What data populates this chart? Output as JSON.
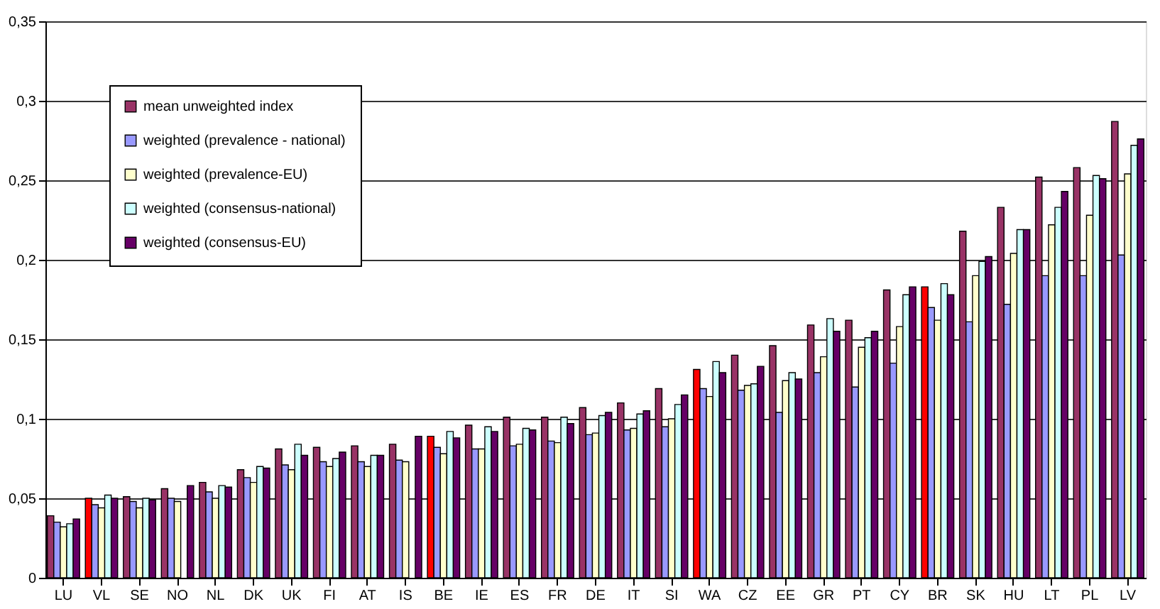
{
  "chart_data": {
    "type": "bar",
    "categories": [
      "LU",
      "VL",
      "SE",
      "NO",
      "NL",
      "DK",
      "UK",
      "FI",
      "AT",
      "IS",
      "BE",
      "IE",
      "ES",
      "FR",
      "DE",
      "IT",
      "SI",
      "WA",
      "CZ",
      "EE",
      "GR",
      "PT",
      "CY",
      "BR",
      "SK",
      "HU",
      "LT",
      "PL",
      "LV"
    ],
    "series": [
      {
        "name": "mean unweighted index",
        "color": "#993366",
        "colors": [
          "#993366",
          "#ff0000",
          "#993366",
          "#993366",
          "#993366",
          "#993366",
          "#993366",
          "#993366",
          "#993366",
          "#993366",
          "#ff0000",
          "#993366",
          "#993366",
          "#993366",
          "#993366",
          "#993366",
          "#993366",
          "#ff0000",
          "#993366",
          "#993366",
          "#993366",
          "#993366",
          "#993366",
          "#ff0000",
          "#993366",
          "#993366",
          "#993366",
          "#993366",
          "#993366"
        ],
        "values": [
          0.039,
          0.05,
          0.051,
          0.056,
          0.06,
          0.068,
          0.081,
          0.082,
          0.083,
          0.084,
          0.089,
          0.096,
          0.101,
          0.101,
          0.107,
          0.11,
          0.119,
          0.131,
          0.14,
          0.146,
          0.159,
          0.162,
          0.181,
          0.183,
          0.218,
          0.233,
          0.252,
          0.258,
          0.287
        ]
      },
      {
        "name": "weighted (prevalence - national)",
        "color": "#9999ff",
        "values": [
          0.035,
          0.046,
          0.048,
          0.05,
          0.054,
          0.063,
          0.071,
          0.073,
          0.073,
          0.074,
          0.082,
          0.081,
          0.083,
          0.086,
          0.09,
          0.093,
          0.095,
          0.119,
          0.118,
          0.104,
          0.129,
          0.12,
          0.135,
          0.17,
          0.161,
          0.172,
          0.19,
          0.19,
          0.203
        ]
      },
      {
        "name": "weighted (prevalence-EU)",
        "color": "#ffffcc",
        "values": [
          0.032,
          0.044,
          0.044,
          0.048,
          0.05,
          0.06,
          0.068,
          0.07,
          0.07,
          0.073,
          0.078,
          0.081,
          0.084,
          0.085,
          0.091,
          0.094,
          0.1,
          0.114,
          0.121,
          0.124,
          0.139,
          0.145,
          0.158,
          0.162,
          0.19,
          0.204,
          0.222,
          0.228,
          0.254
        ]
      },
      {
        "name": "weighted (consensus-national)",
        "color": "#ccffff",
        "values": [
          0.034,
          0.052,
          0.05,
          null,
          0.058,
          0.07,
          0.084,
          0.075,
          0.077,
          null,
          0.092,
          0.095,
          0.094,
          0.101,
          0.102,
          0.103,
          0.109,
          0.136,
          0.122,
          0.129,
          0.163,
          0.151,
          0.178,
          0.185,
          0.199,
          0.219,
          0.233,
          0.253,
          0.272
        ]
      },
      {
        "name": "weighted (consensus-EU)",
        "color": "#660066",
        "values": [
          0.037,
          0.05,
          0.049,
          0.058,
          0.057,
          0.069,
          0.077,
          0.079,
          0.077,
          0.089,
          0.088,
          0.092,
          0.093,
          0.097,
          0.104,
          0.105,
          0.115,
          0.129,
          0.133,
          0.125,
          0.155,
          0.155,
          0.183,
          0.178,
          0.202,
          0.219,
          0.243,
          0.251,
          0.276
        ]
      }
    ],
    "ylim": [
      0,
      0.35
    ],
    "yticks": [
      0,
      {
        "value": 0.05,
        "label": "0,05"
      },
      {
        "value": 0.1,
        "label": "0,1"
      },
      {
        "value": 0.15,
        "label": "0,15"
      },
      {
        "value": 0.2,
        "label": "0,2"
      },
      {
        "value": 0.25,
        "label": "0,25"
      },
      {
        "value": 0.3,
        "label": "0,3"
      },
      {
        "value": 0.35,
        "label": "0,35"
      }
    ],
    "grid": "y",
    "legend": "top left"
  }
}
